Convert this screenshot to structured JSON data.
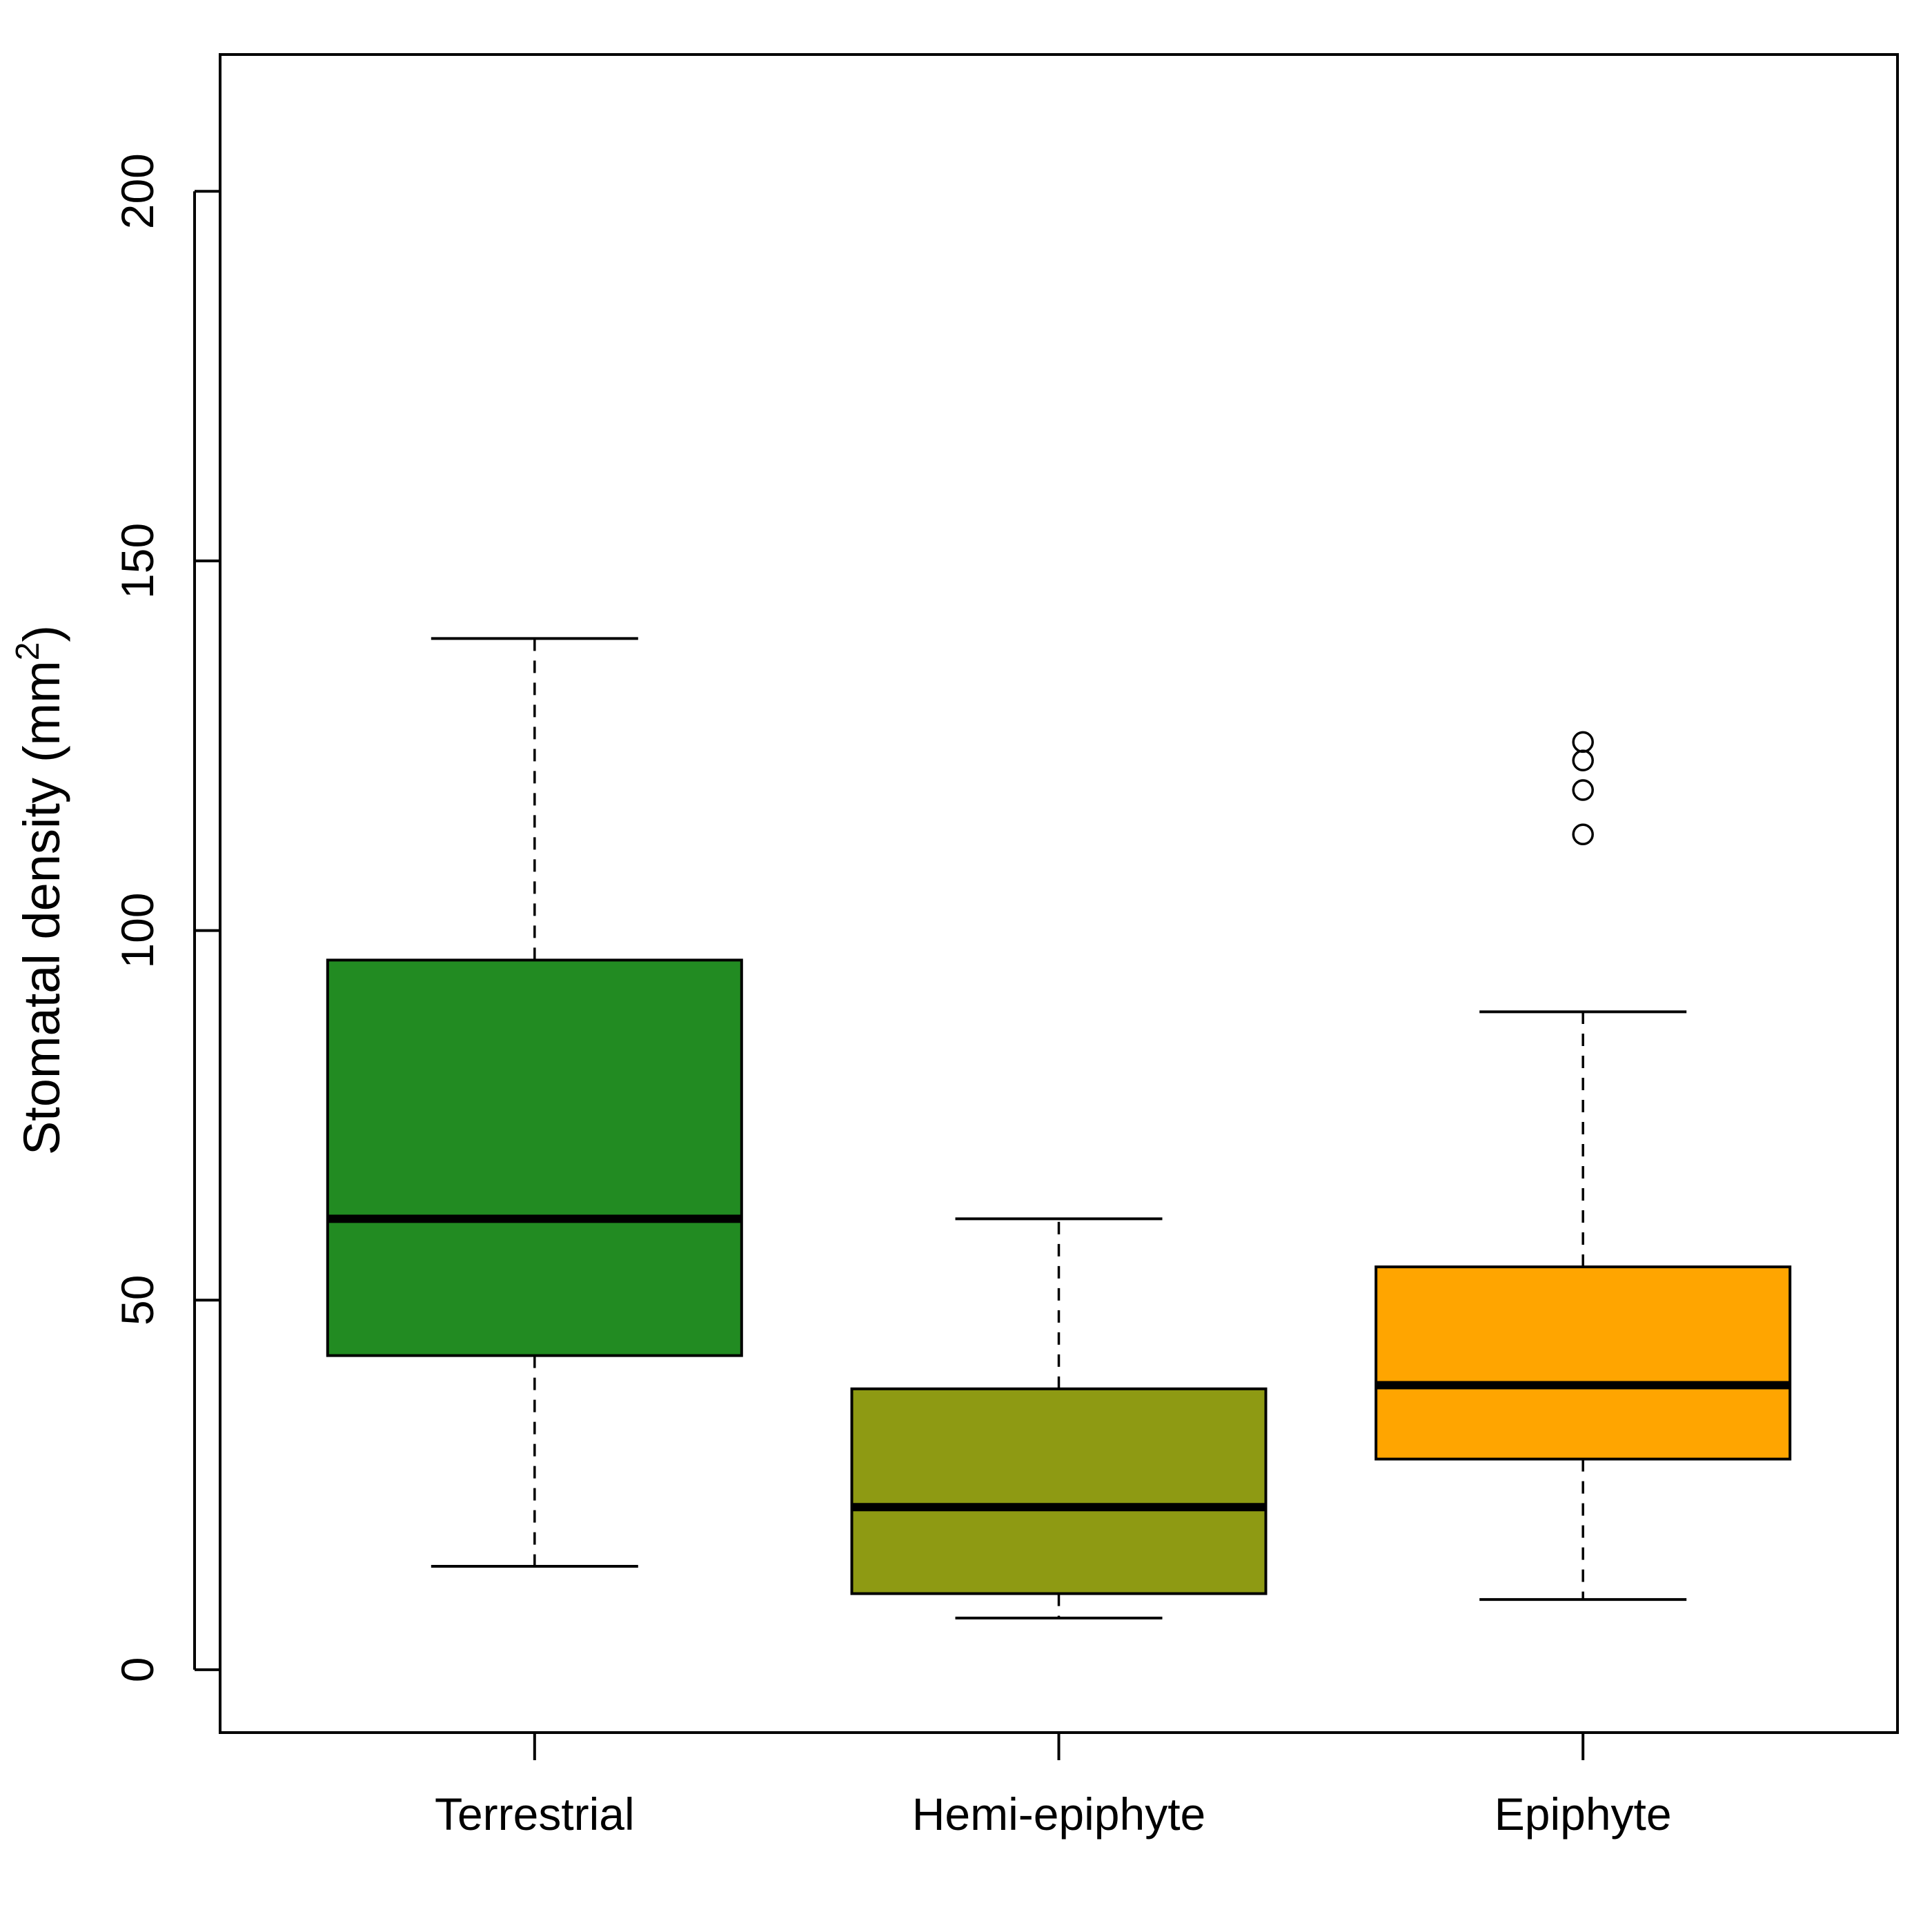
{
  "chart_data": {
    "type": "boxplot",
    "ylabel": "Stomatal density",
    "ylabel_unit": "(mm",
    "ylabel_unit_sup": "2",
    "ylabel_unit_close": ")",
    "ylim": [
      -8.5,
      218.5
    ],
    "yticks": [
      0,
      50,
      100,
      150,
      200
    ],
    "ytick_labels": [
      "0",
      "50",
      "100",
      "150",
      "200"
    ],
    "categories": [
      "Terrestrial",
      "Hemi-epiphyte",
      "Epiphyte"
    ],
    "grid": false,
    "legend": "none",
    "boxes": [
      {
        "category": "Terrestrial",
        "color": "#228B22",
        "whisker_low": 14,
        "q1": 42.5,
        "median": 61,
        "q3": 96,
        "whisker_high": 139.5,
        "outliers": []
      },
      {
        "category": "Hemi-epiphyte",
        "color": "#8E9A13",
        "whisker_low": 7,
        "q1": 10.3,
        "median": 22,
        "q3": 38,
        "whisker_high": 61,
        "outliers": []
      },
      {
        "category": "Epiphyte",
        "color": "#FFA500",
        "whisker_low": 9.5,
        "q1": 28.5,
        "median": 38.5,
        "q3": 54.5,
        "whisker_high": 89,
        "outliers": [
          113,
          119,
          123,
          125.5
        ]
      }
    ]
  }
}
